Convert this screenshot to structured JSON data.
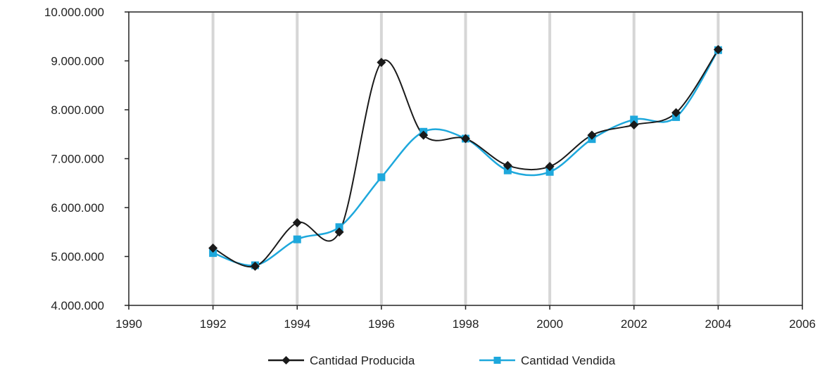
{
  "chart_data": {
    "type": "line",
    "title": "",
    "xlabel": "",
    "ylabel": "",
    "xlim": [
      1990,
      2006
    ],
    "ylim": [
      4000000,
      10000000
    ],
    "x_ticks": [
      1990,
      1992,
      1994,
      1996,
      1998,
      2000,
      2002,
      2004,
      2006
    ],
    "x_tick_labels": [
      "1990",
      "1992",
      "1994",
      "1996",
      "1998",
      "2000",
      "2002",
      "2004",
      "2006"
    ],
    "y_ticks": [
      4000000,
      5000000,
      6000000,
      7000000,
      8000000,
      9000000,
      10000000
    ],
    "y_tick_labels": [
      "4.000.000",
      "5.000.000",
      "6.000.000",
      "7.000.000",
      "8.000.000",
      "9.000.000",
      "10.000.000"
    ],
    "vertical_gridlines_at": [
      1992,
      1994,
      1996,
      1998,
      2000,
      2002,
      2004
    ],
    "grid": "vertical",
    "legend_position": "bottom",
    "x": [
      1992,
      1993,
      1994,
      1995,
      1996,
      1997,
      1998,
      1999,
      2000,
      2001,
      2002,
      2003,
      2004
    ],
    "series": [
      {
        "name": "Cantidad Producida",
        "color": "#1a1a1a",
        "marker": "diamond",
        "values": [
          5170000,
          4800000,
          5690000,
          5500000,
          8970000,
          7480000,
          7410000,
          6860000,
          6840000,
          7480000,
          7690000,
          7940000,
          9230000
        ]
      },
      {
        "name": "Cantidad Vendida",
        "color": "#1ea8dc",
        "marker": "square",
        "values": [
          5070000,
          4820000,
          5350000,
          5600000,
          6620000,
          7550000,
          7410000,
          6760000,
          6730000,
          7400000,
          7800000,
          7850000,
          9220000
        ]
      }
    ]
  }
}
